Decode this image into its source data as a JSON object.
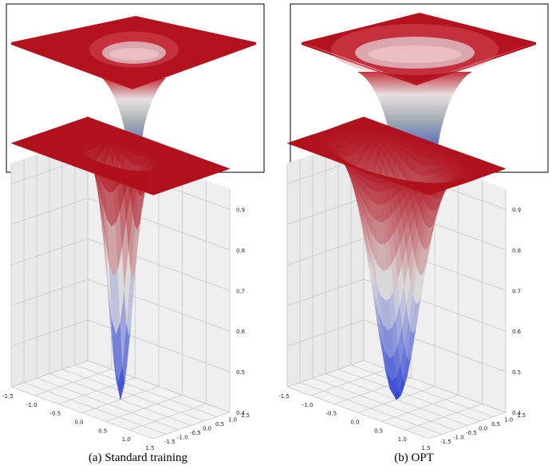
{
  "captions": {
    "a": "(a) Standard training",
    "b": "(b) OPT"
  },
  "colors": {
    "top": "#b0101c",
    "mid": "#dcdcdc",
    "bottom": "#2a3fd6",
    "pane": "#ececec",
    "grid": "#c8c8c8"
  },
  "chart_data": [
    {
      "type": "surface",
      "panel": "a",
      "view": "side",
      "surface": "1 - 0.6 * exp(-(x^2 + y^2) / (2 * 0.22^2))",
      "zlim": [
        0.4,
        1.0
      ]
    },
    {
      "type": "surface",
      "panel": "b",
      "view": "side",
      "surface": "1 - 0.6 * exp(-(x^2 + y^2) / (2 * 0.42^2))",
      "zlim": [
        0.4,
        1.0
      ]
    },
    {
      "type": "surface",
      "panel": "a",
      "view": "3d-axes",
      "surface": "1 - 0.6 * exp(-(x^2 + y^2) / (2 * 0.22^2))",
      "xticks": [
        "-1.5",
        "-1.0",
        "-0.5",
        "0.0",
        "0.5",
        "1.0",
        "1.5"
      ],
      "yticks": [
        "-1.5",
        "-1.0",
        "-0.5",
        "0.0",
        "0.5",
        "1.0",
        "1.5"
      ],
      "zticks": [
        "0.4",
        "0.5",
        "0.6",
        "0.7",
        "0.8",
        "0.9"
      ],
      "xlim": [
        -1.5,
        1.5
      ],
      "ylim": [
        -1.5,
        1.5
      ],
      "zlim": [
        0.4,
        0.95
      ],
      "grid": true
    },
    {
      "type": "surface",
      "panel": "b",
      "view": "3d-axes",
      "surface": "1 - 0.6 * exp(-(x^2 + y^2) / (2 * 0.42^2))",
      "xticks": [
        "-1.5",
        "-1.0",
        "-0.5",
        "0.0",
        "0.5",
        "1.0",
        "1.5"
      ],
      "yticks": [
        "-1.5",
        "-1.0",
        "-0.5",
        "0.0",
        "0.5",
        "1.0",
        "1.5"
      ],
      "zticks": [
        "0.4",
        "0.5",
        "0.6",
        "0.7",
        "0.8",
        "0.9"
      ],
      "xlim": [
        -1.5,
        1.5
      ],
      "ylim": [
        -1.5,
        1.5
      ],
      "zlim": [
        0.4,
        0.95
      ],
      "grid": true
    }
  ]
}
